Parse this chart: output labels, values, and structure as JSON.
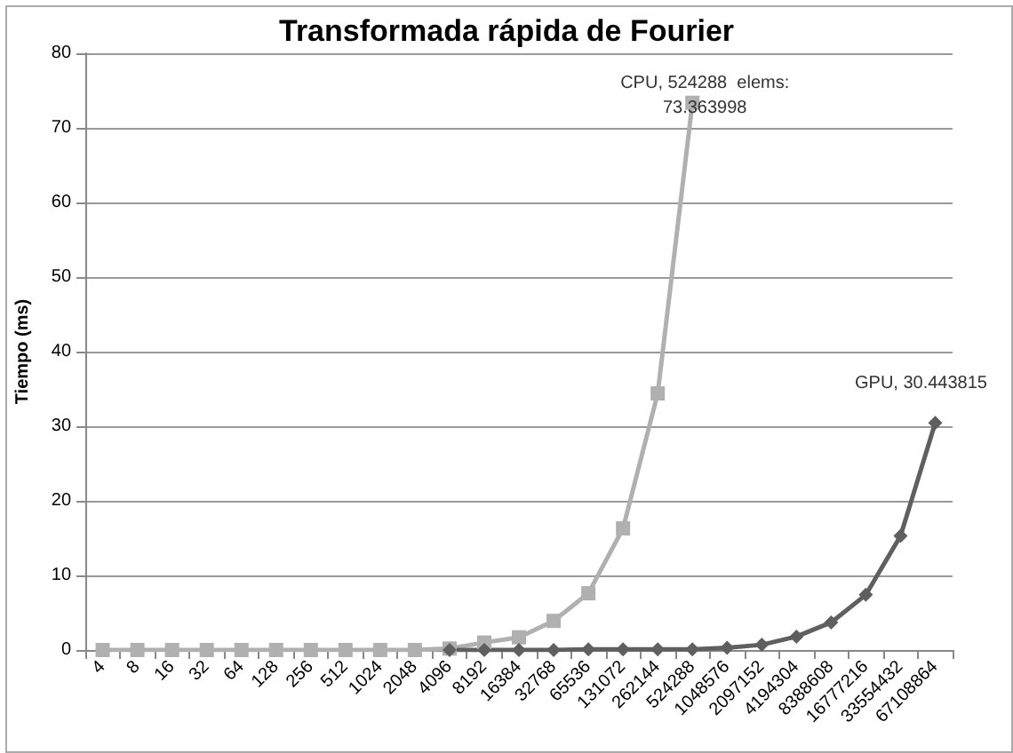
{
  "chart_data": {
    "type": "line",
    "title": "Transformada rápida de Fourier",
    "ylabel": "Tiempo (ms)",
    "categories": [
      "4",
      "8",
      "16",
      "32",
      "64",
      "128",
      "256",
      "512",
      "1024",
      "2048",
      "4096",
      "8192",
      "16384",
      "32768",
      "65536",
      "131072",
      "262144",
      "524288",
      "1048576",
      "2097152",
      "4194304",
      "8388608",
      "16777216",
      "33554432",
      "67108864"
    ],
    "series": [
      {
        "color": "#b0b0b0",
        "marker": "square",
        "values": [
          0,
          0,
          0,
          0,
          0,
          0,
          0,
          0,
          0,
          0,
          0.2,
          1,
          1.7,
          3.9,
          7.6,
          16.3,
          34.4,
          73.363998,
          null,
          null,
          null,
          null,
          null,
          null,
          null
        ]
      },
      {
        "color": "#5f5f5f",
        "marker": "diamond",
        "values": [
          null,
          null,
          null,
          null,
          null,
          null,
          null,
          null,
          null,
          null,
          0,
          0,
          0,
          0,
          0.1,
          0.1,
          0.1,
          0.1,
          0.3,
          0.7,
          1.8,
          3.7,
          7.4,
          15.3,
          30.443815
        ]
      }
    ],
    "annotations": [
      {
        "text": "CPU, 524288  elems:\n73.363998",
        "x": "524288",
        "y": 73.363998
      },
      {
        "text": "GPU, 30.443815",
        "x": "67108864",
        "y": 30.443815
      }
    ],
    "ylim": [
      0,
      80
    ],
    "yticks": [
      0,
      10,
      20,
      30,
      40,
      50,
      60,
      70,
      80
    ],
    "grid": "y",
    "line_style": "solid"
  }
}
